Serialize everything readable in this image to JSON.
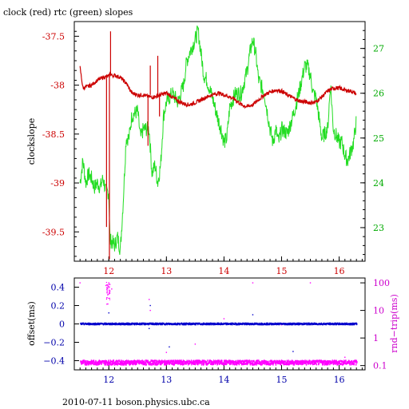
{
  "title": "clock (red) rtc (green) slopes",
  "footer": "2010-07-11 boson.physics.ubc.ca",
  "colors": {
    "clock": "#cc0000",
    "rtc": "#22dd22",
    "offset": "#0000cc",
    "rtt": "#ff00ff",
    "axis_text_red": "#cc0000",
    "axis_text_green": "#00aa00",
    "axis_text_blue": "#0000aa",
    "axis_text_magenta": "#cc00cc"
  },
  "chart_data": [
    {
      "type": "line",
      "title": "clock (red) rtc (green) slopes",
      "xlabel": "",
      "ylabel": "clockslope",
      "y2label": "",
      "xlim": [
        11.4,
        16.45
      ],
      "ylim": [
        -39.8,
        -37.35
      ],
      "y2lim": [
        22.25,
        27.6
      ],
      "grid": false,
      "x_ticks": [
        "12",
        "13",
        "14",
        "15",
        "16"
      ],
      "y_ticks": [
        "-37.5",
        "-38",
        "-38.5",
        "-39",
        "-39.5"
      ],
      "y2_ticks": [
        "27",
        "26",
        "25",
        "24",
        "23"
      ],
      "series": [
        {
          "name": "clock (red)",
          "axis": "left",
          "x": [
            11.5,
            11.55,
            11.6,
            11.7,
            11.8,
            11.9,
            12.0,
            12.02,
            12.05,
            12.1,
            12.2,
            12.3,
            12.4,
            12.5,
            12.6,
            12.7,
            12.8,
            12.9,
            13.0,
            13.1,
            13.2,
            13.3,
            13.4,
            13.5,
            13.6,
            13.7,
            13.8,
            13.9,
            14.0,
            14.1,
            14.2,
            14.3,
            14.4,
            14.5,
            14.6,
            14.7,
            14.8,
            14.9,
            15.0,
            15.1,
            15.2,
            15.3,
            15.4,
            15.5,
            15.6,
            15.7,
            15.8,
            15.9,
            16.0,
            16.1,
            16.2,
            16.3
          ],
          "y": [
            -37.82,
            -38.03,
            -38.02,
            -38.0,
            -37.95,
            -37.92,
            -37.91,
            -37.88,
            -37.9,
            -37.9,
            -37.92,
            -37.98,
            -38.08,
            -38.1,
            -38.1,
            -38.12,
            -38.12,
            -38.1,
            -38.08,
            -38.12,
            -38.16,
            -38.19,
            -38.2,
            -38.18,
            -38.15,
            -38.12,
            -38.1,
            -38.08,
            -38.1,
            -38.12,
            -38.15,
            -38.2,
            -38.22,
            -38.2,
            -38.15,
            -38.1,
            -38.07,
            -38.05,
            -38.06,
            -38.1,
            -38.13,
            -38.16,
            -38.17,
            -38.18,
            -38.17,
            -38.12,
            -38.06,
            -38.03,
            -38.03,
            -38.05,
            -38.06,
            -38.09
          ],
          "spikes": [
            {
              "x": 11.96,
              "y_from": -37.9,
              "y_to": -39.45
            },
            {
              "x": 12.01,
              "y_from": -37.9,
              "y_to": -39.78
            },
            {
              "x": 12.03,
              "y_from": -37.9,
              "y_to": -37.45
            },
            {
              "x": 12.68,
              "y_from": -38.1,
              "y_to": -38.62
            },
            {
              "x": 12.72,
              "y_from": -38.1,
              "y_to": -37.8
            },
            {
              "x": 12.85,
              "y_from": -38.1,
              "y_to": -37.7
            },
            {
              "x": 12.88,
              "y_from": -38.1,
              "y_to": -38.32
            }
          ]
        },
        {
          "name": "rtc (green)",
          "axis": "right",
          "x": [
            11.5,
            11.55,
            11.6,
            11.65,
            11.7,
            11.75,
            11.8,
            11.85,
            11.9,
            11.95,
            12.0,
            12.02,
            12.05,
            12.1,
            12.15,
            12.2,
            12.25,
            12.3,
            12.35,
            12.4,
            12.5,
            12.55,
            12.6,
            12.7,
            12.75,
            12.8,
            12.85,
            12.9,
            12.95,
            13.0,
            13.1,
            13.2,
            13.3,
            13.35,
            13.4,
            13.5,
            13.55,
            13.6,
            13.65,
            13.7,
            13.8,
            13.9,
            13.95,
            14.0,
            14.05,
            14.1,
            14.2,
            14.3,
            14.4,
            14.45,
            14.5,
            14.55,
            14.6,
            14.7,
            14.8,
            14.85,
            14.9,
            14.95,
            15.0,
            15.1,
            15.2,
            15.3,
            15.35,
            15.4,
            15.45,
            15.5,
            15.55,
            15.6,
            15.7,
            15.8,
            15.85,
            15.9,
            16.0,
            16.05,
            16.1,
            16.15,
            16.2,
            16.25,
            16.3
          ],
          "y": [
            24.0,
            24.5,
            24.0,
            24.2,
            24.1,
            23.9,
            24.0,
            23.9,
            24.1,
            23.8,
            23.8,
            22.7,
            22.7,
            22.6,
            22.8,
            22.5,
            23.6,
            25.0,
            25.0,
            25.5,
            25.6,
            25.0,
            25.2,
            25.2,
            24.2,
            24.4,
            24.0,
            24.4,
            25.5,
            25.8,
            26.0,
            25.8,
            26.2,
            26.7,
            26.9,
            27.2,
            27.4,
            26.9,
            26.4,
            26.3,
            25.9,
            25.4,
            25.2,
            24.9,
            25.0,
            25.7,
            26.0,
            26.0,
            26.5,
            26.9,
            27.2,
            26.9,
            26.3,
            26.0,
            25.2,
            24.9,
            25.2,
            24.9,
            25.2,
            25.1,
            25.5,
            26.0,
            26.3,
            26.6,
            26.6,
            26.4,
            26.0,
            25.9,
            25.0,
            25.2,
            26.2,
            25.2,
            24.9,
            24.9,
            24.6,
            24.5,
            24.7,
            24.9,
            25.4
          ]
        }
      ]
    },
    {
      "type": "scatter",
      "title": "",
      "xlabel": "",
      "ylabel": "offset(ms)",
      "y2label": "rnd−trip(ms)",
      "xlim": [
        11.4,
        16.45
      ],
      "ylim": [
        -0.5,
        0.5
      ],
      "y2lim": [
        0.07,
        150
      ],
      "y2_scale": "log",
      "grid": false,
      "x_ticks": [
        "12",
        "13",
        "14",
        "15",
        "16"
      ],
      "y_ticks": [
        "0.4",
        "0.2",
        "0",
        "−0.2",
        "−0.4"
      ],
      "y2_ticks": [
        "100",
        "10",
        "1",
        "0.1"
      ],
      "series": [
        {
          "name": "offset",
          "axis": "left",
          "x_range": [
            11.5,
            16.3
          ],
          "y": 0.0,
          "outliers": [
            [
              12.0,
              0.12
            ],
            [
              12.7,
              -0.05
            ],
            [
              12.72,
              0.2
            ],
            [
              13.05,
              -0.25
            ],
            [
              14.5,
              0.1
            ],
            [
              15.2,
              -0.3
            ]
          ]
        },
        {
          "name": "rnd-trip",
          "axis": "right",
          "x_range": [
            11.5,
            16.3
          ],
          "y": 0.13,
          "outliers": [
            [
              11.5,
              100
            ],
            [
              11.95,
              80
            ],
            [
              12.0,
              100
            ],
            [
              12.05,
              60
            ],
            [
              12.7,
              25
            ],
            [
              12.72,
              10
            ],
            [
              13.0,
              0.3
            ],
            [
              13.5,
              0.6
            ],
            [
              14.0,
              5
            ],
            [
              14.5,
              100
            ],
            [
              15.0,
              3
            ],
            [
              15.5,
              100
            ],
            [
              16.1,
              0.2
            ]
          ]
        }
      ]
    }
  ]
}
